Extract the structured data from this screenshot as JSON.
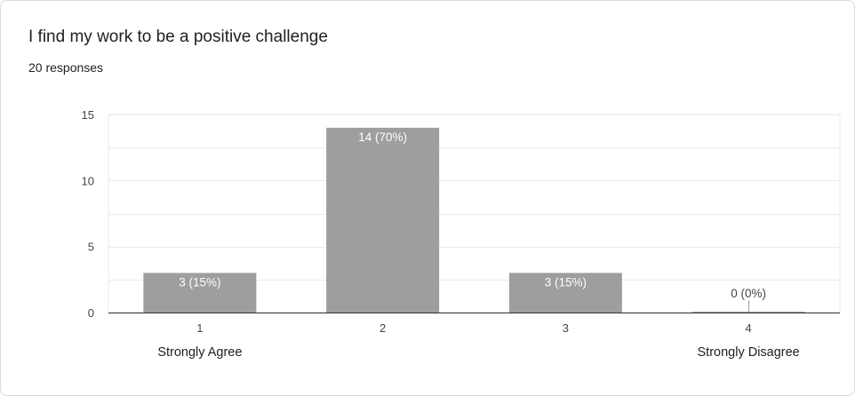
{
  "card": {
    "title": "I find my work to be a positive challenge",
    "responses": "20 responses"
  },
  "colors": {
    "bar": "#9e9e9e",
    "grid": "#ebebeb",
    "axis": "#333333",
    "tick_text": "#444444",
    "bar_label_inside": "#ffffff",
    "bar_label_outside": "#444444"
  },
  "chart_data": {
    "type": "bar",
    "categories": [
      "1",
      "2",
      "3",
      "4"
    ],
    "category_descriptions": [
      "Strongly Agree",
      "",
      "",
      "Strongly Disagree"
    ],
    "values": [
      3,
      14,
      3,
      0
    ],
    "data_labels": [
      "3 (15%)",
      "14 (70%)",
      "3 (15%)",
      "0 (0%)"
    ],
    "title": "I find my work to be a positive challenge",
    "xlabel": "",
    "ylabel": "",
    "ylim": [
      0,
      15
    ],
    "yticks": [
      0,
      5,
      10,
      15
    ],
    "grid": true,
    "legend": "none"
  }
}
